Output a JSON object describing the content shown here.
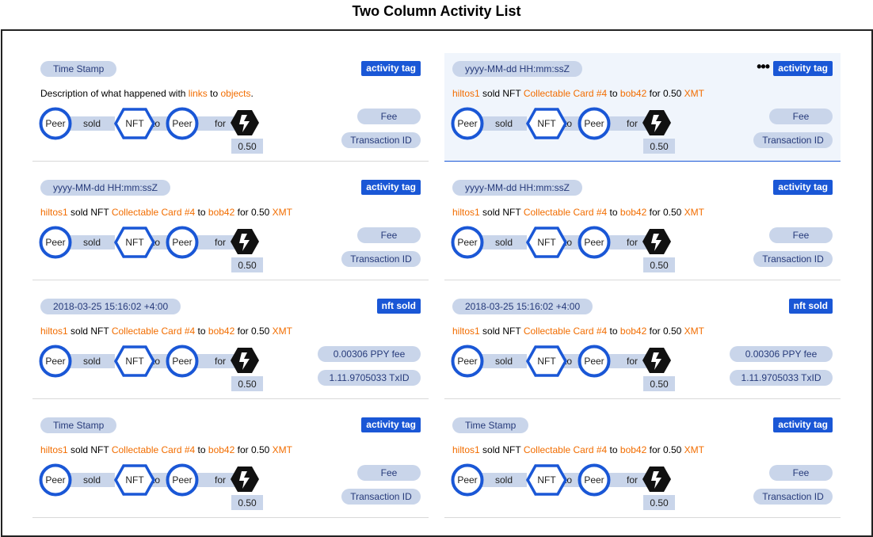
{
  "page": {
    "title": "Two Column Activity List"
  },
  "flow_labels": {
    "peer": "Peer",
    "nft": "NFT",
    "sold": "sold",
    "to": "to",
    "for": "for"
  },
  "desc_words": {
    "sold_nft": " sold NFT ",
    "to": " to ",
    "for": " for "
  },
  "colors": {
    "accent": "#1a57d6",
    "highlight": "#f26d00",
    "pill": "#c9d5ea",
    "connector": "#c9d5ea"
  },
  "icons": {
    "token": "xmt-token-icon",
    "more": "more-dots-icon"
  },
  "activities": [
    {
      "timestamp": "Time Stamp",
      "tag": "activity tag",
      "amount": "0.50",
      "fee": "Fee",
      "txid": "Transaction ID",
      "selected": false,
      "menu": "",
      "description": {
        "plain": true,
        "prefix": "Description of what happened with ",
        "link": "links",
        "middle": " to ",
        "object": "objects",
        "suffix": "."
      }
    },
    {
      "timestamp": "yyyy-MM-dd HH:mm:ssZ",
      "tag": "activity tag",
      "amount": "0.50",
      "fee": "Fee",
      "txid": "Transaction ID",
      "selected": true,
      "menu": "•••",
      "description": {
        "plain": false,
        "user": "hiltos1",
        "item": "Collectable Card #4",
        "recipient": "bob42",
        "price": "0.50",
        "currency": "XMT"
      }
    },
    {
      "timestamp": "yyyy-MM-dd HH:mm:ssZ",
      "tag": "activity tag",
      "amount": "0.50",
      "fee": "Fee",
      "txid": "Transaction ID",
      "selected": false,
      "menu": "",
      "description": {
        "plain": false,
        "user": "hiltos1",
        "item": "Collectable Card #4",
        "recipient": "bob42",
        "price": "0.50",
        "currency": "XMT"
      }
    },
    {
      "timestamp": "yyyy-MM-dd HH:mm:ssZ",
      "tag": "activity tag",
      "amount": "0.50",
      "fee": "Fee",
      "txid": "Transaction ID",
      "selected": false,
      "menu": "",
      "description": {
        "plain": false,
        "user": "hiltos1",
        "item": "Collectable Card #4",
        "recipient": "bob42",
        "price": "0.50",
        "currency": "XMT"
      }
    },
    {
      "timestamp": "2018-03-25 15:16:02 +4:00",
      "tag": "nft sold",
      "amount": "0.50",
      "fee": "0.00306 PPY fee",
      "txid": "1.11.9705033 TxID",
      "selected": false,
      "menu": "",
      "description": {
        "plain": false,
        "user": "hiltos1",
        "item": "Collectable Card #4",
        "recipient": "bob42",
        "price": "0.50",
        "currency": "XMT"
      }
    },
    {
      "timestamp": "2018-03-25 15:16:02 +4:00",
      "tag": "nft sold",
      "amount": "0.50",
      "fee": "0.00306 PPY fee",
      "txid": "1.11.9705033 TxID",
      "selected": false,
      "menu": "",
      "description": {
        "plain": false,
        "user": "hiltos1",
        "item": "Collectable Card #4",
        "recipient": "bob42",
        "price": "0.50",
        "currency": "XMT"
      }
    },
    {
      "timestamp": "Time Stamp",
      "tag": "activity tag",
      "amount": "0.50",
      "fee": "Fee",
      "txid": "Transaction ID",
      "selected": false,
      "menu": "",
      "description": {
        "plain": false,
        "user": "hiltos1",
        "item": "Collectable Card #4",
        "recipient": "bob42",
        "price": "0.50",
        "currency": "XMT"
      }
    },
    {
      "timestamp": "Time Stamp",
      "tag": "activity tag",
      "amount": "0.50",
      "fee": "Fee",
      "txid": "Transaction ID",
      "selected": false,
      "menu": "",
      "description": {
        "plain": false,
        "user": "hiltos1",
        "item": "Collectable Card #4",
        "recipient": "bob42",
        "price": "0.50",
        "currency": "XMT"
      }
    }
  ]
}
